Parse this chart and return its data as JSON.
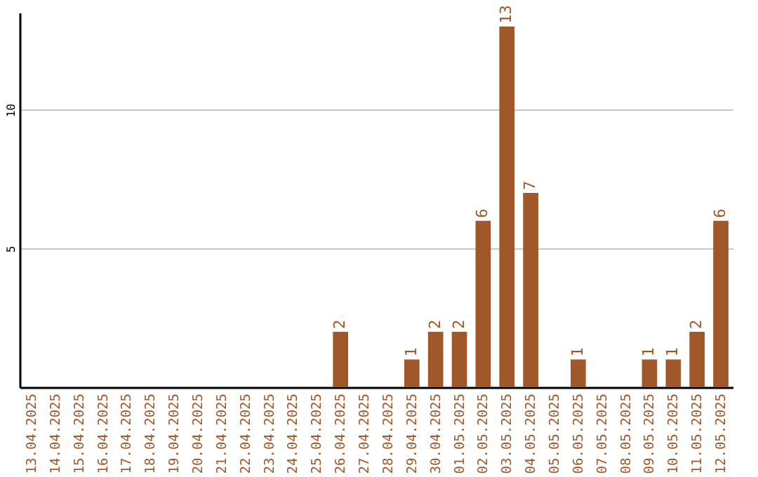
{
  "chart_data": {
    "type": "bar",
    "categories": [
      "13.04.2025",
      "14.04.2025",
      "15.04.2025",
      "16.04.2025",
      "17.04.2025",
      "18.04.2025",
      "19.04.2025",
      "20.04.2025",
      "21.04.2025",
      "22.04.2025",
      "23.04.2025",
      "24.04.2025",
      "25.04.2025",
      "26.04.2025",
      "27.04.2025",
      "28.04.2025",
      "29.04.2025",
      "30.04.2025",
      "01.05.2025",
      "02.05.2025",
      "03.05.2025",
      "04.05.2025",
      "05.05.2025",
      "06.05.2025",
      "07.05.2025",
      "08.05.2025",
      "09.05.2025",
      "10.05.2025",
      "11.05.2025",
      "12.05.2025"
    ],
    "values": [
      0,
      0,
      0,
      0,
      0,
      0,
      0,
      0,
      0,
      0,
      0,
      0,
      0,
      2,
      0,
      0,
      1,
      2,
      2,
      6,
      13,
      7,
      0,
      1,
      0,
      0,
      1,
      1,
      2,
      6
    ],
    "value_labels": [
      null,
      null,
      null,
      null,
      null,
      null,
      null,
      null,
      null,
      null,
      null,
      null,
      null,
      "2",
      null,
      null,
      "1",
      "2",
      "2",
      "6",
      "13",
      "7",
      null,
      "1",
      null,
      null,
      "1",
      "1",
      "2",
      "6"
    ],
    "color": "#a0582a",
    "ylim": [
      0,
      13.5
    ],
    "yticks": [
      5,
      10
    ],
    "grid": "y"
  }
}
